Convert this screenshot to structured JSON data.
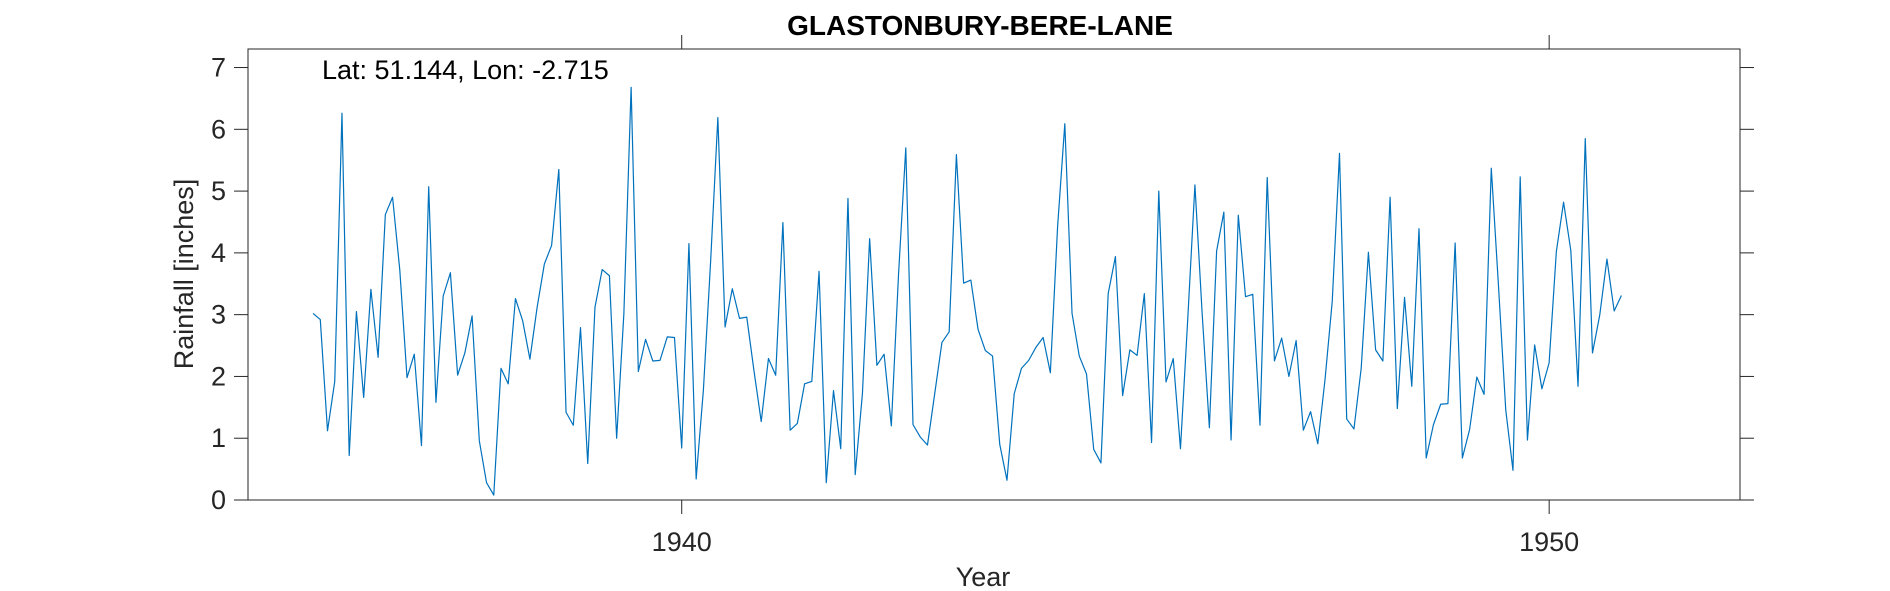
{
  "chart_data": {
    "type": "line",
    "title": "GLASTONBURY-BERE-LANE",
    "annotation": "Lat: 51.144, Lon: -2.715",
    "xlabel": "Year",
    "ylabel": "Rainfall [inches]",
    "xlim": [
      1935,
      1952.2
    ],
    "ylim": [
      0,
      7.3
    ],
    "xticks": [
      1940,
      1950
    ],
    "xtick_labels": [
      "1940",
      "1950"
    ],
    "yticks": [
      0,
      1,
      2,
      3,
      4,
      5,
      6,
      7
    ],
    "ytick_labels": [
      "0",
      "1",
      "2",
      "3",
      "4",
      "5",
      "6",
      "7"
    ],
    "grid": false,
    "line_color": "#0072BD",
    "series": [
      {
        "name": "Rainfall",
        "x_start": 1935.75,
        "x_step": 0.08333,
        "values": [
          3.02,
          2.92,
          1.12,
          1.92,
          6.26,
          0.72,
          3.05,
          1.66,
          3.41,
          2.31,
          4.62,
          4.9,
          3.72,
          1.98,
          2.36,
          0.88,
          5.07,
          1.58,
          3.3,
          3.68,
          2.02,
          2.38,
          2.98,
          0.96,
          0.28,
          0.08,
          2.13,
          1.88,
          3.26,
          2.9,
          2.28,
          3.12,
          3.82,
          4.12,
          5.35,
          1.42,
          1.21,
          2.79,
          0.59,
          3.12,
          3.73,
          3.63,
          1.0,
          3.02,
          6.68,
          2.08,
          2.6,
          2.25,
          2.26,
          2.64,
          2.63,
          0.84,
          4.15,
          0.34,
          1.78,
          3.86,
          6.19,
          2.8,
          3.42,
          2.94,
          2.96,
          2.09,
          1.27,
          2.29,
          2.02,
          4.49,
          1.13,
          1.24,
          1.88,
          1.92,
          3.7,
          0.28,
          1.77,
          0.83,
          4.88,
          0.41,
          1.72,
          4.23,
          2.18,
          2.36,
          1.2,
          3.66,
          5.7,
          1.22,
          1.02,
          0.89,
          1.72,
          2.55,
          2.72,
          5.59,
          3.51,
          3.56,
          2.76,
          2.42,
          2.33,
          0.9,
          0.32,
          1.72,
          2.13,
          2.26,
          2.47,
          2.63,
          2.06,
          4.42,
          6.09,
          3.02,
          2.33,
          2.04,
          0.82,
          0.6,
          3.34,
          3.94,
          1.69,
          2.43,
          2.34,
          3.34,
          0.93,
          5.0,
          1.91,
          2.29,
          0.83,
          2.91,
          5.1,
          3.02,
          1.17,
          4.03,
          4.66,
          0.97,
          4.61,
          3.29,
          3.33,
          1.21,
          5.22,
          2.25,
          2.62,
          2.0,
          2.58,
          1.13,
          1.43,
          0.91,
          1.95,
          3.22,
          5.61,
          1.31,
          1.15,
          2.13,
          4.01,
          2.43,
          2.25,
          4.9,
          1.48,
          3.28,
          1.84,
          4.39,
          0.68,
          1.22,
          1.55,
          1.56,
          4.16,
          0.68,
          1.14,
          1.99,
          1.71,
          5.37,
          3.46,
          1.46,
          0.48,
          5.23,
          0.97,
          2.51,
          1.8,
          2.22,
          4.02,
          4.82,
          4.04,
          1.84,
          5.85,
          2.38,
          2.99,
          3.9,
          3.06,
          3.31
        ]
      }
    ]
  }
}
